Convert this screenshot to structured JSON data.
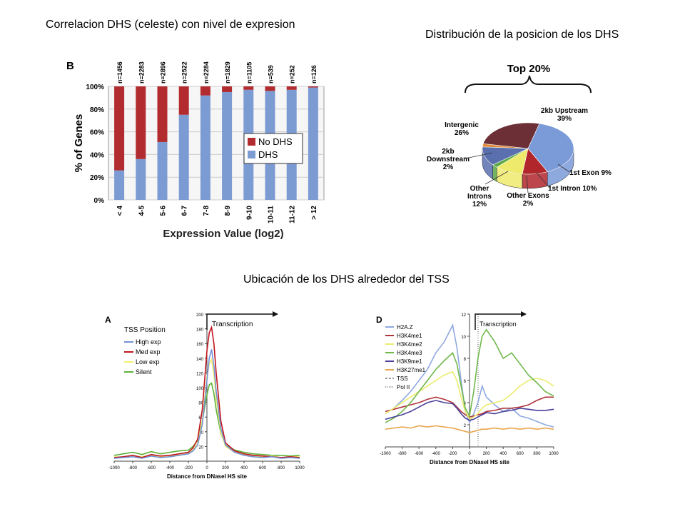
{
  "titles": {
    "bar": "Correlacion DHS (celeste) con nivel de expresion",
    "pie": "Distribución de la posicion de los DHS",
    "tss": "Ubicación de los DHS alrededor del TSS"
  },
  "colors": {
    "no_dhs": "#b22b2e",
    "dhs": "#7c9bd3",
    "high": "#7391d4",
    "med": "#c0161e",
    "low": "#f2ee70",
    "silent": "#5fb138",
    "h2az": "#8fa8e0",
    "h3k4me1": "#b0343a",
    "h3k4me2": "#ecec6e",
    "h3k4me3": "#6fb84a",
    "h3k9me1": "#4a3f9a",
    "h3k27me1": "#e8a64e"
  },
  "chart_data": [
    {
      "type": "bar",
      "panel": "B",
      "title": "Correlacion DHS (celeste) con nivel de expresion",
      "xlabel": "Expression Value (log2)",
      "ylabel": "% of Genes",
      "ylim": [
        0,
        100
      ],
      "yticks": [
        "0%",
        "20%",
        "40%",
        "60%",
        "80%",
        "100%"
      ],
      "categories": [
        "< 4",
        "4-5",
        "5-6",
        "6-7",
        "7-8",
        "8-9",
        "9-10",
        "10-11",
        "11-12",
        "> 12"
      ],
      "counts": [
        "n=1456",
        "n=2283",
        "n=2896",
        "n=2522",
        "n=2284",
        "n=1829",
        "n=1105",
        "n=539",
        "n=252",
        "n=126"
      ],
      "series": [
        {
          "name": "No DHS",
          "values": [
            74,
            64,
            49,
            25,
            8,
            5,
            3,
            4,
            3,
            1
          ]
        },
        {
          "name": "DHS",
          "values": [
            26,
            36,
            51,
            75,
            92,
            95,
            97,
            96,
            97,
            99
          ]
        }
      ],
      "legend": [
        "No DHS",
        "DHS"
      ]
    },
    {
      "type": "pie",
      "title": "Distribución de la posicion de los DHS",
      "header": "Top 20%",
      "slices": [
        {
          "label": "2kb Upstream",
          "pct_label": "39%",
          "value": 39
        },
        {
          "label": "1st Exon",
          "pct_label": "9%",
          "value": 9
        },
        {
          "label": "1st Intron",
          "pct_label": "10%",
          "value": 10
        },
        {
          "label": "Other Exons",
          "pct_label": "2%",
          "value": 2
        },
        {
          "label": "Other Introns",
          "pct_label": "12%",
          "value": 12
        },
        {
          "label": "2kb Downstream",
          "pct_label": "2%",
          "value": 2
        },
        {
          "label": "Intergenic",
          "pct_label": "26%",
          "value": 26
        }
      ],
      "slice_colors": [
        "#7a9ad8",
        "#b0262b",
        "#eeea6c",
        "#5aa844",
        "#5a6fae",
        "#e08a3a",
        "#6b2f35"
      ]
    },
    {
      "type": "line",
      "panel": "A",
      "title": "Ubicación de los DHS alrededor del TSS",
      "annotation": "Transcription",
      "legend_title": "TSS Position",
      "xlabel": "Distance from DNaseI HS site",
      "xlim": [
        -1000,
        1000
      ],
      "ylim": [
        0,
        200
      ],
      "xticks": [
        -1000,
        -800,
        -600,
        -400,
        -200,
        0,
        200,
        400,
        600,
        800,
        1000
      ],
      "yticks": [
        20,
        40,
        60,
        80,
        100,
        120,
        140,
        160,
        180,
        200
      ],
      "x": [
        -1000,
        -900,
        -800,
        -700,
        -600,
        -500,
        -400,
        -300,
        -200,
        -150,
        -100,
        -50,
        0,
        25,
        50,
        75,
        100,
        150,
        200,
        300,
        400,
        500,
        600,
        700,
        800,
        900,
        1000
      ],
      "series": [
        {
          "name": "High exp",
          "values": [
            4,
            5,
            6,
            4,
            7,
            5,
            6,
            8,
            10,
            14,
            22,
            50,
            110,
            140,
            152,
            130,
            95,
            45,
            22,
            12,
            8,
            6,
            5,
            6,
            4,
            5,
            4
          ]
        },
        {
          "name": "Med exp",
          "values": [
            5,
            6,
            8,
            5,
            9,
            7,
            8,
            10,
            12,
            18,
            30,
            70,
            150,
            175,
            182,
            160,
            120,
            55,
            25,
            14,
            10,
            8,
            7,
            6,
            5,
            6,
            5
          ]
        },
        {
          "name": "Low exp",
          "values": [
            6,
            5,
            7,
            6,
            8,
            6,
            7,
            9,
            11,
            15,
            24,
            55,
            115,
            132,
            138,
            118,
            85,
            40,
            20,
            12,
            9,
            7,
            6,
            7,
            5,
            6,
            6
          ]
        },
        {
          "name": "Silent",
          "values": [
            8,
            10,
            12,
            9,
            13,
            10,
            12,
            14,
            15,
            20,
            28,
            55,
            90,
            104,
            106,
            92,
            70,
            38,
            22,
            15,
            12,
            10,
            9,
            8,
            8,
            7,
            8
          ]
        }
      ]
    },
    {
      "type": "line",
      "panel": "D",
      "annotation": "Transcription",
      "xlabel": "Distance from DNaseI HS site",
      "xlim": [
        -1000,
        1000
      ],
      "ylim": [
        0,
        12
      ],
      "xticks": [
        -1000,
        -800,
        -600,
        -400,
        -200,
        0,
        200,
        400,
        600,
        800,
        1000
      ],
      "yticks": [
        2,
        4,
        6,
        8,
        10,
        12
      ],
      "x": [
        -1000,
        -900,
        -800,
        -700,
        -600,
        -500,
        -400,
        -300,
        -200,
        -150,
        -100,
        -50,
        0,
        50,
        100,
        150,
        200,
        300,
        400,
        500,
        600,
        700,
        800,
        900,
        1000
      ],
      "series": [
        {
          "name": "H2A.Z",
          "values": [
            3.0,
            3.5,
            4.2,
            5.0,
            6.0,
            7.0,
            8.5,
            9.5,
            11.0,
            9.0,
            6.0,
            3.2,
            2.2,
            3.0,
            4.0,
            5.5,
            4.5,
            3.8,
            3.2,
            3.5,
            2.8,
            2.6,
            2.3,
            2.0,
            1.8
          ]
        },
        {
          "name": "H3K4me1",
          "values": [
            3.2,
            3.4,
            3.6,
            3.8,
            4.0,
            4.3,
            4.5,
            4.3,
            4.0,
            3.6,
            3.2,
            2.9,
            2.7,
            2.8,
            2.9,
            3.0,
            3.2,
            3.3,
            3.5,
            3.5,
            3.6,
            3.8,
            4.2,
            4.5,
            4.5
          ]
        },
        {
          "name": "H3K4me2",
          "values": [
            3.0,
            3.5,
            4.0,
            4.5,
            5.0,
            5.5,
            6.0,
            6.5,
            6.8,
            6.0,
            4.5,
            3.2,
            2.5,
            2.7,
            3.0,
            3.5,
            3.8,
            4.0,
            4.2,
            4.8,
            5.5,
            6.0,
            6.2,
            6.0,
            5.5
          ]
        },
        {
          "name": "H3K4me3",
          "values": [
            2.2,
            2.6,
            3.2,
            4.0,
            5.0,
            6.0,
            7.0,
            7.8,
            8.5,
            7.5,
            5.5,
            3.5,
            2.8,
            5.0,
            8.0,
            10.0,
            10.6,
            9.5,
            8.0,
            8.5,
            7.5,
            6.5,
            5.8,
            5.0,
            4.6
          ]
        },
        {
          "name": "H3K9me1",
          "values": [
            2.5,
            2.7,
            2.9,
            3.2,
            3.6,
            4.0,
            4.2,
            4.0,
            3.9,
            3.5,
            3.0,
            2.6,
            2.4,
            2.5,
            2.7,
            2.9,
            3.1,
            3.0,
            3.2,
            3.3,
            3.5,
            3.4,
            3.3,
            3.3,
            3.4
          ]
        },
        {
          "name": "H3K27me1",
          "values": [
            1.6,
            1.7,
            1.8,
            1.7,
            1.9,
            1.8,
            1.9,
            1.8,
            1.7,
            1.6,
            1.5,
            1.4,
            1.3,
            1.4,
            1.5,
            1.6,
            1.6,
            1.7,
            1.6,
            1.7,
            1.6,
            1.7,
            1.6,
            1.7,
            1.6
          ]
        }
      ],
      "extra_legend": [
        "TSS",
        "Pol II"
      ]
    }
  ]
}
